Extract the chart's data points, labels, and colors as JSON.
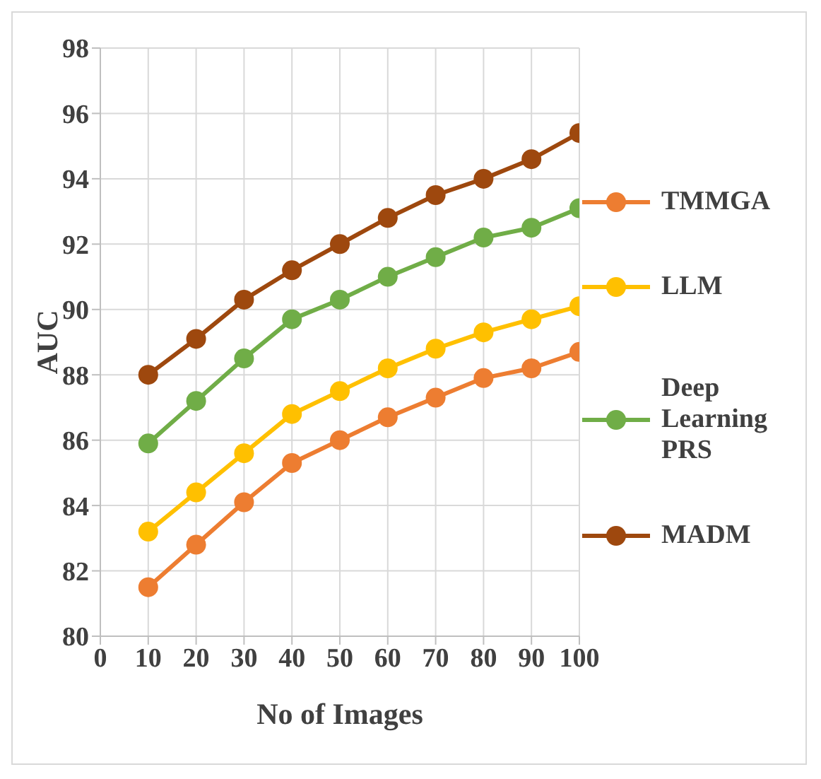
{
  "chart_data": {
    "type": "line",
    "xlabel": "No of Images",
    "ylabel": "AUC",
    "x": [
      10,
      20,
      30,
      40,
      50,
      60,
      70,
      80,
      90,
      100
    ],
    "xlim": [
      0,
      100
    ],
    "xticks": [
      0,
      10,
      20,
      30,
      40,
      50,
      60,
      70,
      80,
      90,
      100
    ],
    "ylim": [
      80,
      98
    ],
    "yticks": [
      80,
      82,
      84,
      86,
      88,
      90,
      92,
      94,
      96,
      98
    ],
    "grid": true,
    "legend": "right",
    "marker": "circle",
    "line_style": "solid",
    "series": [
      {
        "name": "TMMGA",
        "color": "#ed7d31",
        "values": [
          81.5,
          82.8,
          84.1,
          85.3,
          86.0,
          86.7,
          87.3,
          87.9,
          88.2,
          88.7
        ]
      },
      {
        "name": "LLM",
        "color": "#ffc000",
        "values": [
          83.2,
          84.4,
          85.6,
          86.8,
          87.5,
          88.2,
          88.8,
          89.3,
          89.7,
          90.1
        ]
      },
      {
        "name": "Deep Learning PRS",
        "color": "#70ad47",
        "values": [
          85.9,
          87.2,
          88.5,
          89.7,
          90.3,
          91.0,
          91.6,
          92.2,
          92.5,
          93.1
        ]
      },
      {
        "name": "MADM",
        "color": "#9e480e",
        "values": [
          88.0,
          89.1,
          90.3,
          91.2,
          92.0,
          92.8,
          93.5,
          94.0,
          94.6,
          95.4
        ]
      }
    ]
  }
}
